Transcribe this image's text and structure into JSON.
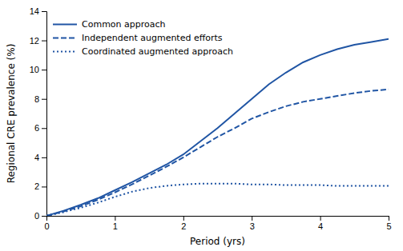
{
  "chart_data": {
    "type": "line",
    "xlabel": "Period (yrs)",
    "ylabel": "Regional CRE prevalence (%)",
    "x": [
      0,
      0.25,
      0.5,
      0.75,
      1.0,
      1.25,
      1.5,
      1.75,
      2.0,
      2.25,
      2.5,
      2.75,
      3.0,
      3.25,
      3.5,
      3.75,
      4.0,
      4.25,
      4.5,
      4.75,
      5.0
    ],
    "series": [
      {
        "name": "Common approach",
        "color": "#2055a4",
        "line_style": "solid",
        "values": [
          0.0,
          0.35,
          0.75,
          1.2,
          1.75,
          2.3,
          2.9,
          3.5,
          4.2,
          5.1,
          6.0,
          7.0,
          8.0,
          9.0,
          9.8,
          10.5,
          11.0,
          11.4,
          11.7,
          11.9,
          12.1
        ]
      },
      {
        "name": "Independent augmented efforts",
        "color": "#2055a4",
        "line_style": "dashed",
        "values": [
          0.0,
          0.3,
          0.65,
          1.1,
          1.6,
          2.15,
          2.75,
          3.35,
          4.0,
          4.7,
          5.4,
          6.0,
          6.65,
          7.1,
          7.5,
          7.8,
          8.0,
          8.2,
          8.4,
          8.55,
          8.65
        ]
      },
      {
        "name": "Coordinated augmented approach",
        "color": "#2055a4",
        "line_style": "dotted",
        "values": [
          0.0,
          0.25,
          0.55,
          0.9,
          1.3,
          1.65,
          1.9,
          2.05,
          2.15,
          2.2,
          2.2,
          2.2,
          2.15,
          2.15,
          2.1,
          2.1,
          2.1,
          2.05,
          2.05,
          2.05,
          2.05
        ]
      }
    ],
    "xlim": [
      0,
      5
    ],
    "ylim": [
      0,
      14
    ],
    "xticks": [
      0,
      1,
      2,
      3,
      4,
      5
    ],
    "yticks": [
      0,
      2,
      4,
      6,
      8,
      10,
      12,
      14
    ],
    "legend": "upper left",
    "grid": false
  }
}
